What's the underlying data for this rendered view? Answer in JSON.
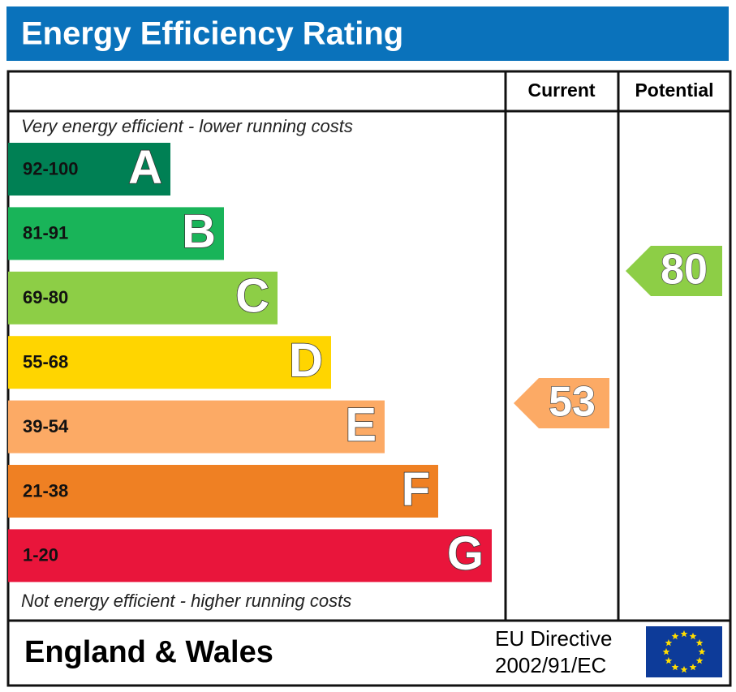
{
  "header": {
    "title": "Energy Efficiency Rating"
  },
  "columns": [
    "Current",
    "Potential"
  ],
  "top_note": "Very energy efficient - lower running costs",
  "bottom_note": "Not energy efficient - higher running costs",
  "bands": [
    {
      "range": "92-100",
      "letter": "A",
      "color": "#008054"
    },
    {
      "range": "81-91",
      "letter": "B",
      "color": "#19b459"
    },
    {
      "range": "69-80",
      "letter": "C",
      "color": "#8dce46"
    },
    {
      "range": "55-68",
      "letter": "D",
      "color": "#ffd500"
    },
    {
      "range": "39-54",
      "letter": "E",
      "color": "#fcaa65"
    },
    {
      "range": "21-38",
      "letter": "F",
      "color": "#ef8023"
    },
    {
      "range": "1-20",
      "letter": "G",
      "color": "#e9153b"
    }
  ],
  "current": {
    "value": 53,
    "color": "#fcaa65"
  },
  "potential": {
    "value": 80,
    "color": "#8dce46"
  },
  "footer": {
    "region": "England & Wales",
    "directive": [
      "EU Directive",
      "2002/91/EC"
    ]
  }
}
